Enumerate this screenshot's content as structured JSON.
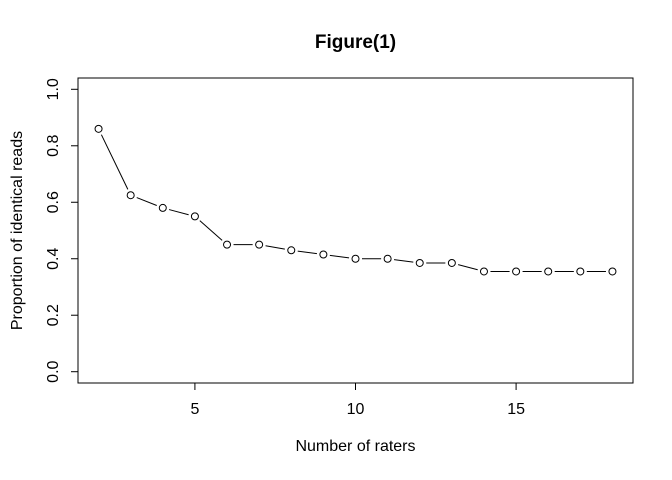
{
  "window": {
    "background": "#ffffff"
  },
  "chart_data": {
    "type": "line",
    "title": "Figure(1)",
    "xlabel": "Number of raters",
    "ylabel": "Proportion of identical reads",
    "x": [
      2,
      3,
      4,
      5,
      6,
      7,
      8,
      9,
      10,
      11,
      12,
      13,
      14,
      15,
      16,
      17,
      18
    ],
    "y": [
      0.86,
      0.625,
      0.58,
      0.55,
      0.45,
      0.45,
      0.43,
      0.415,
      0.4,
      0.4,
      0.385,
      0.385,
      0.355,
      0.355,
      0.355,
      0.355,
      0.355
    ],
    "xlim": [
      2,
      18
    ],
    "ylim": [
      0,
      1
    ],
    "x_ticks": [
      {
        "value": 5,
        "label": "5"
      },
      {
        "value": 10,
        "label": "10"
      },
      {
        "value": 15,
        "label": "15"
      }
    ],
    "y_ticks": [
      {
        "value": 0.0,
        "label": "0.0"
      },
      {
        "value": 0.2,
        "label": "0.2"
      },
      {
        "value": 0.4,
        "label": "0.4"
      },
      {
        "value": 0.6,
        "label": "0.6"
      },
      {
        "value": 0.8,
        "label": "0.8"
      },
      {
        "value": 1.0,
        "label": "1.0"
      }
    ],
    "marker": "open-circle",
    "plot_style": "points-and-lines",
    "grid": false,
    "legend": "none",
    "line_color": "#000000",
    "text_color": "#000000",
    "background": "#ffffff"
  }
}
